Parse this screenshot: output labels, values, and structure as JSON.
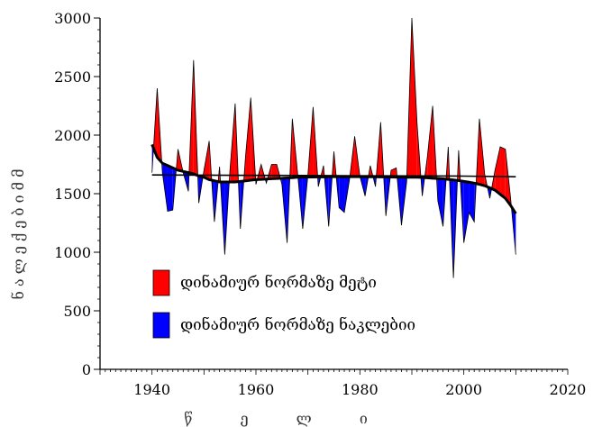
{
  "chart_data": {
    "type": "area",
    "title": "",
    "xlabel": "წ ე ლ ი",
    "ylabel": "ნ ა ლ ე ქ ე ბ ი   მ მ",
    "xlim": [
      1930,
      2020
    ],
    "ylim": [
      0,
      3000
    ],
    "x_ticks": [
      1940,
      1960,
      1980,
      2000,
      2020
    ],
    "y_ticks": [
      0,
      500,
      1000,
      1500,
      2000,
      2500,
      3000
    ],
    "grid": false,
    "legend_position": "lower-left",
    "colors": {
      "above": "#ff0000",
      "below": "#0000ff",
      "line": "#000000",
      "trend": "#000000"
    },
    "years": [
      1940,
      1941,
      1942,
      1943,
      1944,
      1945,
      1946,
      1947,
      1948,
      1949,
      1950,
      1951,
      1952,
      1953,
      1954,
      1955,
      1956,
      1957,
      1958,
      1959,
      1960,
      1961,
      1962,
      1963,
      1964,
      1965,
      1966,
      1967,
      1968,
      1969,
      1970,
      1971,
      1972,
      1973,
      1974,
      1975,
      1976,
      1977,
      1978,
      1979,
      1980,
      1981,
      1982,
      1983,
      1984,
      1985,
      1986,
      1987,
      1988,
      1989,
      1990,
      1991,
      1992,
      1993,
      1994,
      1995,
      1996,
      1997,
      1998,
      1999,
      2000,
      2001,
      2002,
      2003,
      2004,
      2005,
      2006,
      2007,
      2008,
      2009,
      2010
    ],
    "precipitation": [
      1680,
      2400,
      1680,
      1350,
      1360,
      1880,
      1680,
      1520,
      2640,
      1420,
      1700,
      1950,
      1260,
      1730,
      980,
      1700,
      2270,
      1200,
      1820,
      2320,
      1580,
      1750,
      1590,
      1750,
      1750,
      1580,
      1080,
      2140,
      1680,
      1200,
      1660,
      2240,
      1560,
      1740,
      1220,
      1860,
      1380,
      1340,
      1620,
      1990,
      1650,
      1480,
      1740,
      1560,
      2110,
      1310,
      1700,
      1720,
      1230,
      1600,
      3000,
      2100,
      1480,
      1820,
      2250,
      1440,
      1220,
      1900,
      780,
      1870,
      1080,
      1340,
      1260,
      2140,
      1670,
      1460,
      1700,
      1900,
      1880,
      1460,
      980
    ],
    "dynamic_norm": [
      1920,
      1810,
      1760,
      1740,
      1720,
      1700,
      1690,
      1680,
      1670,
      1650,
      1640,
      1620,
      1610,
      1600,
      1600,
      1600,
      1600,
      1605,
      1610,
      1615,
      1620,
      1622,
      1625,
      1628,
      1630,
      1632,
      1635,
      1637,
      1640,
      1640,
      1642,
      1642,
      1643,
      1643,
      1645,
      1645,
      1645,
      1645,
      1645,
      1645,
      1645,
      1645,
      1644,
      1644,
      1643,
      1643,
      1642,
      1641,
      1640,
      1640,
      1640,
      1640,
      1638,
      1636,
      1632,
      1630,
      1627,
      1622,
      1617,
      1612,
      1605,
      1598,
      1590,
      1580,
      1568,
      1550,
      1530,
      1495,
      1460,
      1400,
      1330
    ],
    "trend": [
      1660,
      1655,
      1650,
      1645
    ],
    "trend_x": [
      1940,
      1970,
      2000,
      2010
    ],
    "series": [
      {
        "name": "დინამიურ ნორმაზე მეტი"
      },
      {
        "name": "დინამიურ ნორმაზე ნაკლებიი"
      }
    ]
  }
}
